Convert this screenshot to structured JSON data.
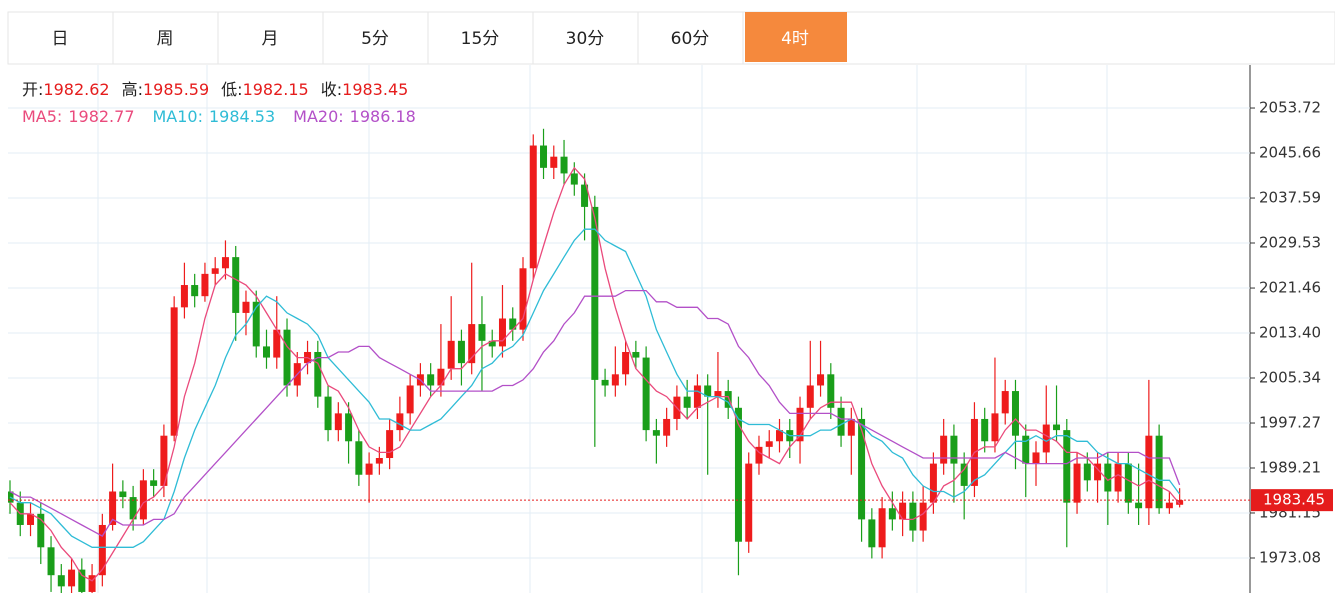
{
  "tabs": [
    "日",
    "周",
    "月",
    "5分",
    "15分",
    "30分",
    "60分",
    "4时"
  ],
  "active_tab": 7,
  "chart_data": {
    "type": "candlestick",
    "info_labels": [
      "开:",
      "高:",
      "低:",
      "收:"
    ],
    "ylim": [
      1966.81,
      2061.43
    ],
    "yticks": [
      2053.72,
      2045.66,
      2037.59,
      2029.53,
      2021.46,
      {
        "value": 2013.4,
        "label": "2013.40"
      },
      2005.34,
      1997.27,
      1989.21,
      1981.15,
      1973.08
    ],
    "up_color": "#ee1c1c",
    "down_color": "#1a9e1a",
    "grid": true,
    "candles": {
      "open": [
        1985,
        1983,
        1979,
        1981,
        1975,
        1970,
        1968,
        1971,
        1967,
        1970,
        1979,
        1985,
        1984,
        1980,
        1987,
        1986,
        1995,
        2018,
        2022,
        2020,
        2024,
        2025,
        2027,
        2017,
        2019,
        2011,
        2009,
        2014,
        2004,
        2008,
        2010,
        2002,
        1996,
        1999,
        1994,
        1988,
        1990,
        1991,
        1996,
        1999,
        2004,
        2006,
        2004,
        2007,
        2012,
        2008,
        2015,
        2012,
        2011,
        2016,
        2014,
        2025,
        2047,
        2043,
        2045,
        2042,
        2040,
        2036,
        2005,
        2004,
        2006,
        2010,
        2009,
        1996,
        1995,
        1998,
        2002,
        2000,
        2004,
        2002,
        2003,
        2000,
        1976,
        1990,
        1993,
        1994,
        1996,
        1994,
        2000,
        2004,
        2006,
        2000,
        1995,
        1998,
        1980,
        1975,
        1982,
        1980,
        1983,
        1978,
        1983,
        1990,
        1995,
        1990,
        1986,
        1998,
        1994,
        1999,
        2003,
        1995,
        1990,
        1992,
        1997,
        1996,
        1983,
        1990,
        1987,
        1990,
        1985,
        1990,
        1983,
        1982,
        1995,
        1982,
        1982.62
      ],
      "high": [
        1987,
        1985,
        1983,
        1983,
        1977,
        1972,
        1973,
        1973,
        1972,
        1981,
        1990,
        1987,
        1986,
        1989,
        1989,
        1997,
        2020,
        2026,
        2024,
        2026,
        2027,
        2030,
        2029,
        2021,
        2021,
        2014,
        2020,
        2016,
        2010,
        2012,
        2012,
        2004,
        2001,
        2001,
        1996,
        1992,
        1993,
        1998,
        2002,
        2006,
        2008,
        2008,
        2015,
        2020,
        2014,
        2026,
        2020,
        2014,
        2022,
        2018,
        2027,
        2049,
        2050,
        2047,
        2048,
        2044,
        2042,
        2038,
        2007,
        2011,
        2012,
        2012,
        2011,
        1998,
        2000,
        2004,
        2005,
        2006,
        2006,
        2010,
        2005,
        2002,
        1992,
        1995,
        1996,
        1998,
        1998,
        2002,
        2012,
        2012,
        2008,
        2002,
        2000,
        2000,
        1982,
        1984,
        1985,
        1985,
        1985,
        1986,
        1992,
        1998,
        1997,
        1992,
        2001,
        2000,
        2009,
        2005,
        2005,
        1997,
        1994,
        2004,
        2004,
        1998,
        1992,
        1992,
        1992,
        1992,
        1992,
        1992,
        1990,
        2005,
        1997,
        1985,
        1985.59
      ],
      "low": [
        1981,
        1977,
        1977,
        1972,
        1967,
        1966,
        1966,
        1965,
        1965,
        1968,
        1978,
        1982,
        1978,
        1979,
        1984,
        1984,
        1994,
        2016,
        2018,
        2019,
        2022,
        2023,
        2012,
        2013,
        2009,
        2007,
        2007,
        2002,
        2002,
        2006,
        2000,
        1994,
        1994,
        1990,
        1986,
        1983,
        1988,
        1989,
        1994,
        1997,
        2002,
        2002,
        2002,
        2005,
        2004,
        2006,
        2003,
        2009,
        2009,
        2012,
        2012,
        2023,
        2041,
        2041,
        2040,
        2038,
        2030,
        1993,
        2002,
        2002,
        2004,
        2007,
        1994,
        1990,
        1993,
        1996,
        1998,
        1998,
        1988,
        2000,
        1998,
        1970,
        1974,
        1988,
        1991,
        1992,
        1991,
        1990,
        1998,
        2002,
        1998,
        1993,
        1988,
        1976,
        1973,
        1973,
        1978,
        1977,
        1976,
        1976,
        1981,
        1988,
        1983,
        1980,
        1984,
        1992,
        1992,
        1997,
        1989,
        1984,
        1986,
        1990,
        1994,
        1975,
        1981,
        1985,
        1983,
        1979,
        1983,
        1981,
        1979,
        1979,
        1981,
        1981,
        1982.15
      ],
      "close": [
        1983,
        1979,
        1981,
        1975,
        1970,
        1968,
        1971,
        1967,
        1970,
        1979,
        1985,
        1984,
        1980,
        1987,
        1986,
        1995,
        2018,
        2022,
        2020,
        2024,
        2025,
        2027,
        2017,
        2019,
        2011,
        2009,
        2014,
        2004,
        2008,
        2010,
        2002,
        1996,
        1999,
        1994,
        1988,
        1990,
        1991,
        1996,
        1999,
        2004,
        2006,
        2004,
        2007,
        2012,
        2008,
        2015,
        2012,
        2011,
        2016,
        2014,
        2025,
        2047,
        2043,
        2045,
        2042,
        2040,
        2036,
        2005,
        2004,
        2006,
        2010,
        2009,
        1996,
        1995,
        1998,
        2002,
        2000,
        2004,
        2002,
        2003,
        2000,
        1976,
        1990,
        1993,
        1994,
        1996,
        1994,
        2000,
        2004,
        2006,
        2000,
        1995,
        1998,
        1980,
        1975,
        1982,
        1980,
        1983,
        1978,
        1983,
        1990,
        1995,
        1990,
        1986,
        1998,
        1994,
        1999,
        2003,
        1995,
        1990,
        1992,
        1997,
        1996,
        1983,
        1990,
        1987,
        1990,
        1985,
        1990,
        1983,
        1982,
        1995,
        1982,
        1983,
        1983.45
      ]
    },
    "series": [
      {
        "name": "MA5:",
        "color": "#ea4a7c",
        "values": [
          1983,
          1981,
          1981,
          1980,
          1978,
          1975,
          1973,
          1970,
          1969,
          1971,
          1974,
          1977,
          1980,
          1983,
          1984,
          1986,
          1993,
          2002,
          2008,
          2016,
          2022,
          2024,
          2023,
          2022,
          2020,
          2017,
          2014,
          2011,
          2009,
          2009,
          2008,
          2004,
          2003,
          2000,
          1996,
          1993,
          1992,
          1992,
          1993,
          1996,
          1999,
          2002,
          2004,
          2007,
          2007,
          2009,
          2011,
          2012,
          2012,
          2014,
          2016,
          2023,
          2029,
          2035,
          2040,
          2043,
          2041,
          2034,
          2025,
          2018,
          2012,
          2007,
          2005,
          2003,
          2002,
          2000,
          1998,
          2000,
          2001,
          2002,
          2002,
          1997,
          1994,
          1992,
          1991,
          1990,
          1993,
          1995,
          1998,
          2000,
          2001,
          2001,
          2001,
          1996,
          1990,
          1986,
          1983,
          1980,
          1980,
          1981,
          1983,
          1986,
          1987,
          1989,
          1992,
          1993,
          1993,
          1996,
          1998,
          1996,
          1996,
          1995,
          1994,
          1992,
          1992,
          1991,
          1989,
          1987,
          1988,
          1987,
          1986,
          1987,
          1986,
          1985,
          1982.77
        ]
      },
      {
        "name": "MA10:",
        "color": "#2fbcd6",
        "values": [
          1984,
          1983,
          1983,
          1982,
          1981,
          1979,
          1977,
          1976,
          1975,
          1975,
          1975,
          1975,
          1975,
          1976,
          1978,
          1980,
          1985,
          1991,
          1996,
          2000,
          2004,
          2009,
          2013,
          2015,
          2018,
          2020,
          2019,
          2017,
          2016,
          2015,
          2013,
          2009,
          2007,
          2005,
          2003,
          2001,
          1998,
          1998,
          1997,
          1996,
          1996,
          1997,
          1998,
          2000,
          2002,
          2004,
          2007,
          2008,
          2010,
          2011,
          2013,
          2017,
          2021,
          2024,
          2027,
          2030,
          2032,
          2032,
          2030,
          2029,
          2028,
          2024,
          2020,
          2014,
          2010,
          2006,
          2003,
          2003,
          2002,
          2002,
          2001,
          1998,
          1997,
          1997,
          1997,
          1996,
          1995,
          1995,
          1995,
          1996,
          1996,
          1997,
          1998,
          1997,
          1995,
          1994,
          1992,
          1991,
          1988,
          1986,
          1985,
          1985,
          1984,
          1985,
          1987,
          1988,
          1990,
          1992,
          1994,
          1994,
          1995,
          1994,
          1995,
          1995,
          1994,
          1994,
          1992,
          1991,
          1990,
          1990,
          1989,
          1988,
          1987,
          1987,
          1984.53
        ]
      },
      {
        "name": "MA20:",
        "color": "#b350c8",
        "values": [
          1985,
          1984,
          1984,
          1983,
          1982,
          1981,
          1980,
          1979,
          1978,
          1977,
          1980,
          1979,
          1979,
          1979,
          1980,
          1980,
          1981,
          1984,
          1986,
          1988,
          1990,
          1992,
          1994,
          1996,
          1998,
          2000,
          2002,
          2004,
          2006,
          2008,
          2009,
          2009,
          2010,
          2010,
          2011,
          2011,
          2009,
          2008,
          2007,
          2006,
          2005,
          2003,
          2003,
          2003,
          2003,
          2003,
          2003,
          2003,
          2004,
          2004,
          2005,
          2007,
          2010,
          2012,
          2015,
          2017,
          2020,
          2020,
          2020,
          2020,
          2021,
          2021,
          2021,
          2019,
          2019,
          2018,
          2018,
          2018,
          2016,
          2016,
          2015,
          2011,
          2009,
          2006,
          2004,
          2001,
          1999,
          1999,
          1999,
          1999,
          1999,
          1998,
          1998,
          1997,
          1996,
          1995,
          1994,
          1993,
          1992,
          1991,
          1991,
          1991,
          1991,
          1991,
          1991,
          1991,
          1991,
          1992,
          1991,
          1990,
          1990,
          1990,
          1990,
          1990,
          1991,
          1991,
          1991,
          1992,
          1992,
          1992,
          1992,
          1991,
          1991,
          1991,
          1986.18
        ]
      }
    ]
  }
}
